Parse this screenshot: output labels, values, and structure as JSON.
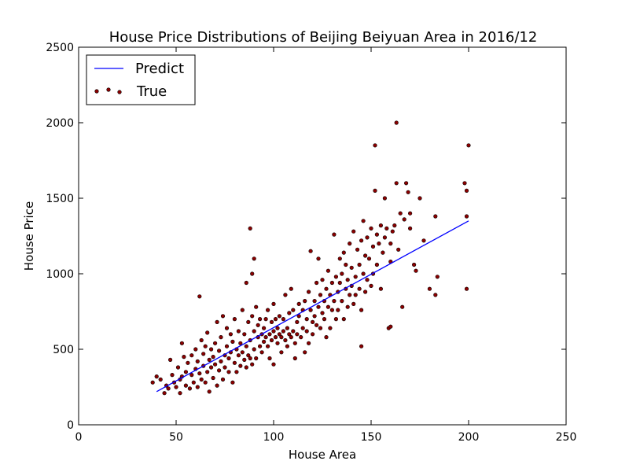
{
  "chart_data": {
    "type": "scatter",
    "title": "House Price Distributions of Beijing Beiyuan Area in 2016/12",
    "xlabel": "House Area",
    "ylabel": "House Price",
    "xlim": [
      0,
      250
    ],
    "ylim": [
      0,
      2500
    ],
    "xticks": [
      "0",
      "50",
      "100",
      "150",
      "200",
      "250"
    ],
    "yticks": [
      "0",
      "500",
      "1000",
      "1500",
      "2000",
      "2500"
    ],
    "grid": false,
    "legend_position": "top-left",
    "legend": [
      "Predict",
      "True"
    ],
    "series": [
      {
        "name": "Predict",
        "kind": "line",
        "color": "#0000ff",
        "points": [
          [
            40,
            220
          ],
          [
            200,
            1350
          ]
        ]
      },
      {
        "name": "True",
        "kind": "scatter",
        "color": "#8b0000",
        "edge": "#000000",
        "points": [
          [
            38,
            280
          ],
          [
            40,
            320
          ],
          [
            42,
            300
          ],
          [
            44,
            210
          ],
          [
            45,
            260
          ],
          [
            46,
            240
          ],
          [
            47,
            430
          ],
          [
            48,
            330
          ],
          [
            49,
            280
          ],
          [
            50,
            250
          ],
          [
            51,
            380
          ],
          [
            52,
            300
          ],
          [
            52,
            210
          ],
          [
            53,
            540
          ],
          [
            53,
            320
          ],
          [
            54,
            450
          ],
          [
            55,
            260
          ],
          [
            55,
            350
          ],
          [
            56,
            410
          ],
          [
            57,
            240
          ],
          [
            58,
            330
          ],
          [
            58,
            460
          ],
          [
            59,
            280
          ],
          [
            60,
            370
          ],
          [
            60,
            500
          ],
          [
            61,
            250
          ],
          [
            61,
            420
          ],
          [
            62,
            340
          ],
          [
            62,
            850
          ],
          [
            63,
            300
          ],
          [
            63,
            560
          ],
          [
            64,
            390
          ],
          [
            64,
            470
          ],
          [
            65,
            280
          ],
          [
            65,
            520
          ],
          [
            66,
            350
          ],
          [
            66,
            610
          ],
          [
            67,
            430
          ],
          [
            67,
            220
          ],
          [
            68,
            380
          ],
          [
            68,
            500
          ],
          [
            69,
            310
          ],
          [
            69,
            450
          ],
          [
            70,
            540
          ],
          [
            70,
            400
          ],
          [
            71,
            260
          ],
          [
            71,
            680
          ],
          [
            72,
            360
          ],
          [
            72,
            490
          ],
          [
            73,
            420
          ],
          [
            73,
            580
          ],
          [
            74,
            300
          ],
          [
            74,
            720
          ],
          [
            75,
            460
          ],
          [
            75,
            380
          ],
          [
            76,
            520
          ],
          [
            76,
            640
          ],
          [
            77,
            350
          ],
          [
            77,
            440
          ],
          [
            78,
            600
          ],
          [
            78,
            480
          ],
          [
            79,
            280
          ],
          [
            79,
            550
          ],
          [
            80,
            410
          ],
          [
            80,
            700
          ],
          [
            81,
            500
          ],
          [
            81,
            350
          ],
          [
            82,
            620
          ],
          [
            82,
            460
          ],
          [
            83,
            390
          ],
          [
            83,
            540
          ],
          [
            84,
            760
          ],
          [
            84,
            480
          ],
          [
            85,
            430
          ],
          [
            85,
            600
          ],
          [
            86,
            940
          ],
          [
            86,
            520
          ],
          [
            86,
            380
          ],
          [
            87,
            680
          ],
          [
            87,
            460
          ],
          [
            88,
            560
          ],
          [
            88,
            1300
          ],
          [
            88,
            440
          ],
          [
            89,
            720
          ],
          [
            89,
            1000
          ],
          [
            89,
            400
          ],
          [
            90,
            620
          ],
          [
            90,
            500
          ],
          [
            90,
            1100
          ],
          [
            91,
            780
          ],
          [
            91,
            440
          ],
          [
            92,
            580
          ],
          [
            92,
            660
          ],
          [
            93,
            520
          ],
          [
            93,
            700
          ],
          [
            94,
            600
          ],
          [
            94,
            480
          ],
          [
            95,
            640
          ],
          [
            95,
            550
          ],
          [
            96,
            580
          ],
          [
            96,
            700
          ],
          [
            97,
            520
          ],
          [
            97,
            760
          ],
          [
            98,
            600
          ],
          [
            98,
            440
          ],
          [
            99,
            680
          ],
          [
            99,
            560
          ],
          [
            100,
            620
          ],
          [
            100,
            800
          ],
          [
            100,
            400
          ],
          [
            101,
            580
          ],
          [
            101,
            700
          ],
          [
            102,
            540
          ],
          [
            102,
            640
          ],
          [
            103,
            600
          ],
          [
            103,
            720
          ],
          [
            104,
            580
          ],
          [
            104,
            480
          ],
          [
            105,
            620
          ],
          [
            105,
            700
          ],
          [
            106,
            560
          ],
          [
            106,
            860
          ],
          [
            107,
            640
          ],
          [
            107,
            520
          ],
          [
            108,
            600
          ],
          [
            108,
            740
          ],
          [
            109,
            580
          ],
          [
            109,
            900
          ],
          [
            110,
            620
          ],
          [
            110,
            760
          ],
          [
            111,
            540
          ],
          [
            111,
            440
          ],
          [
            112,
            680
          ],
          [
            112,
            600
          ],
          [
            113,
            800
          ],
          [
            113,
            720
          ],
          [
            114,
            580
          ],
          [
            115,
            760
          ],
          [
            115,
            640
          ],
          [
            116,
            820
          ],
          [
            116,
            480
          ],
          [
            117,
            620
          ],
          [
            117,
            700
          ],
          [
            118,
            540
          ],
          [
            118,
            880
          ],
          [
            119,
            760
          ],
          [
            119,
            1150
          ],
          [
            120,
            680
          ],
          [
            120,
            600
          ],
          [
            121,
            820
          ],
          [
            121,
            720
          ],
          [
            122,
            940
          ],
          [
            122,
            660
          ],
          [
            123,
            780
          ],
          [
            123,
            1100
          ],
          [
            124,
            640
          ],
          [
            124,
            860
          ],
          [
            125,
            740
          ],
          [
            125,
            960
          ],
          [
            126,
            820
          ],
          [
            126,
            700
          ],
          [
            127,
            900
          ],
          [
            127,
            580
          ],
          [
            128,
            1020
          ],
          [
            128,
            780
          ],
          [
            129,
            860
          ],
          [
            129,
            640
          ],
          [
            130,
            940
          ],
          [
            130,
            760
          ],
          [
            131,
            1260
          ],
          [
            131,
            820
          ],
          [
            132,
            700
          ],
          [
            132,
            980
          ],
          [
            133,
            880
          ],
          [
            133,
            760
          ],
          [
            134,
            1100
          ],
          [
            134,
            940
          ],
          [
            135,
            1000
          ],
          [
            135,
            820
          ],
          [
            136,
            1140
          ],
          [
            136,
            700
          ],
          [
            137,
            900
          ],
          [
            137,
            1060
          ],
          [
            138,
            780
          ],
          [
            138,
            960
          ],
          [
            139,
            1200
          ],
          [
            139,
            860
          ],
          [
            140,
            1040
          ],
          [
            140,
            920
          ],
          [
            141,
            800
          ],
          [
            141,
            1280
          ],
          [
            142,
            980
          ],
          [
            142,
            860
          ],
          [
            143,
            1160
          ],
          [
            144,
            1060
          ],
          [
            144,
            900
          ],
          [
            145,
            1220
          ],
          [
            145,
            760
          ],
          [
            146,
            1000
          ],
          [
            146,
            1350
          ],
          [
            147,
            1120
          ],
          [
            147,
            880
          ],
          [
            148,
            1240
          ],
          [
            148,
            960
          ],
          [
            149,
            1100
          ],
          [
            150,
            1300
          ],
          [
            150,
            920
          ],
          [
            151,
            1180
          ],
          [
            151,
            1000
          ],
          [
            152,
            1550
          ],
          [
            152,
            1850
          ],
          [
            153,
            1260
          ],
          [
            153,
            1060
          ],
          [
            154,
            1200
          ],
          [
            155,
            900
          ],
          [
            155,
            1320
          ],
          [
            156,
            1140
          ],
          [
            157,
            1240
          ],
          [
            157,
            1500
          ],
          [
            158,
            1300
          ],
          [
            159,
            640
          ],
          [
            160,
            1200
          ],
          [
            160,
            1080
          ],
          [
            161,
            1280
          ],
          [
            162,
            1320
          ],
          [
            163,
            1600
          ],
          [
            163,
            2000
          ],
          [
            164,
            1160
          ],
          [
            165,
            1400
          ],
          [
            166,
            780
          ],
          [
            167,
            1360
          ],
          [
            168,
            1600
          ],
          [
            169,
            1540
          ],
          [
            170,
            1400
          ],
          [
            170,
            1300
          ],
          [
            172,
            1060
          ],
          [
            173,
            1020
          ],
          [
            175,
            1500
          ],
          [
            177,
            1220
          ],
          [
            180,
            900
          ],
          [
            183,
            860
          ],
          [
            183,
            1380
          ],
          [
            184,
            980
          ],
          [
            198,
            1600
          ],
          [
            199,
            1550
          ],
          [
            199,
            1380
          ],
          [
            199,
            900
          ],
          [
            200,
            1850
          ],
          [
            160,
            650
          ],
          [
            145,
            520
          ]
        ]
      }
    ]
  }
}
